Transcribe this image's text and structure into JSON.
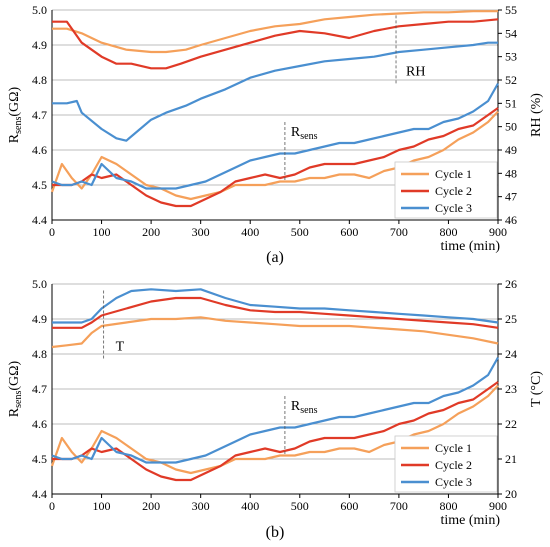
{
  "chart_data": [
    {
      "type": "line",
      "panel_label": "(a)",
      "xlabel": "time (min)",
      "ylabel_main": "R",
      "ylabel_sub": "sens",
      "ylabel_unit": "(GΩ)",
      "y2label": "RH (%)",
      "xlim": [
        0,
        900
      ],
      "ylim": [
        4.4,
        5.0
      ],
      "y2lim": [
        46,
        55
      ],
      "xticks": [
        "0",
        "100",
        "200",
        "300",
        "400",
        "500",
        "600",
        "700",
        "800",
        "900"
      ],
      "yticks": [
        "4.4",
        "4.5",
        "4.6",
        "4.7",
        "4.8",
        "4.9",
        "5.0"
      ],
      "y2ticks": [
        "46",
        "47",
        "48",
        "49",
        "50",
        "51",
        "52",
        "53",
        "54",
        "55"
      ],
      "grid": true,
      "legend": {
        "placement": "bottom-right",
        "entries": [
          "Cycle 1",
          "Cycle 2",
          "Cycle 3"
        ]
      },
      "annotations": [
        {
          "text": "RH",
          "x": 670,
          "y_rh": 52.2
        },
        {
          "text_main": "R",
          "text_sub": "sens",
          "x": 470,
          "y": 4.6
        }
      ],
      "colors": {
        "Cycle 1": "#f5a05a",
        "Cycle 2": "#e03a27",
        "Cycle 3": "#4a8fd0"
      },
      "series_rh": [
        {
          "name": "Cycle 1",
          "axis": "right",
          "x": [
            0,
            30,
            60,
            100,
            150,
            200,
            230,
            270,
            300,
            350,
            400,
            450,
            500,
            550,
            600,
            650,
            700,
            750,
            800,
            850,
            900
          ],
          "y": [
            54.2,
            54.2,
            54.0,
            53.6,
            53.3,
            53.2,
            53.2,
            53.3,
            53.5,
            53.8,
            54.1,
            54.3,
            54.4,
            54.6,
            54.7,
            54.8,
            54.85,
            54.9,
            54.9,
            54.95,
            54.95
          ]
        },
        {
          "name": "Cycle 2",
          "axis": "right",
          "x": [
            0,
            30,
            60,
            100,
            130,
            160,
            200,
            230,
            260,
            300,
            350,
            400,
            450,
            500,
            550,
            600,
            650,
            700,
            750,
            800,
            850,
            900
          ],
          "y": [
            54.5,
            54.5,
            53.6,
            53.0,
            52.7,
            52.7,
            52.5,
            52.5,
            52.7,
            53.0,
            53.3,
            53.6,
            53.9,
            54.1,
            54.0,
            53.8,
            54.1,
            54.3,
            54.4,
            54.5,
            54.5,
            54.6
          ]
        },
        {
          "name": "Cycle 3",
          "axis": "right",
          "x": [
            0,
            30,
            50,
            60,
            100,
            130,
            150,
            200,
            230,
            270,
            300,
            350,
            400,
            450,
            500,
            550,
            600,
            650,
            700,
            750,
            800,
            850,
            880,
            900
          ],
          "y": [
            51.0,
            51.0,
            51.1,
            50.6,
            49.9,
            49.5,
            49.4,
            50.3,
            50.6,
            50.9,
            51.2,
            51.6,
            52.1,
            52.4,
            52.6,
            52.8,
            52.9,
            53.0,
            53.2,
            53.3,
            53.4,
            53.5,
            53.6,
            53.6
          ]
        }
      ],
      "series_r": [
        {
          "name": "Cycle 1",
          "axis": "left",
          "x": [
            0,
            20,
            40,
            60,
            80,
            100,
            130,
            160,
            190,
            220,
            250,
            280,
            310,
            340,
            370,
            400,
            430,
            460,
            490,
            520,
            550,
            580,
            610,
            640,
            670,
            700,
            730,
            760,
            790,
            820,
            850,
            880,
            900
          ],
          "y": [
            4.48,
            4.56,
            4.52,
            4.49,
            4.53,
            4.58,
            4.56,
            4.53,
            4.5,
            4.49,
            4.47,
            4.46,
            4.47,
            4.48,
            4.5,
            4.5,
            4.5,
            4.51,
            4.51,
            4.52,
            4.52,
            4.53,
            4.53,
            4.52,
            4.54,
            4.55,
            4.57,
            4.58,
            4.6,
            4.63,
            4.65,
            4.68,
            4.71
          ]
        },
        {
          "name": "Cycle 2",
          "axis": "left",
          "x": [
            0,
            20,
            40,
            60,
            80,
            100,
            130,
            160,
            190,
            220,
            250,
            280,
            310,
            340,
            370,
            400,
            430,
            460,
            490,
            520,
            550,
            580,
            610,
            640,
            670,
            700,
            730,
            760,
            790,
            820,
            850,
            880,
            900
          ],
          "y": [
            4.5,
            4.5,
            4.5,
            4.51,
            4.53,
            4.52,
            4.53,
            4.5,
            4.47,
            4.45,
            4.44,
            4.44,
            4.46,
            4.48,
            4.51,
            4.52,
            4.53,
            4.52,
            4.53,
            4.55,
            4.56,
            4.56,
            4.56,
            4.57,
            4.58,
            4.6,
            4.61,
            4.63,
            4.64,
            4.66,
            4.67,
            4.7,
            4.72
          ]
        },
        {
          "name": "Cycle 3",
          "axis": "left",
          "x": [
            0,
            20,
            40,
            60,
            80,
            100,
            130,
            160,
            190,
            220,
            250,
            280,
            310,
            340,
            370,
            400,
            430,
            460,
            490,
            520,
            550,
            580,
            610,
            640,
            670,
            700,
            730,
            760,
            790,
            820,
            850,
            880,
            900
          ],
          "y": [
            4.51,
            4.5,
            4.5,
            4.51,
            4.5,
            4.56,
            4.52,
            4.51,
            4.49,
            4.49,
            4.49,
            4.5,
            4.51,
            4.53,
            4.55,
            4.57,
            4.58,
            4.59,
            4.59,
            4.6,
            4.61,
            4.62,
            4.62,
            4.63,
            4.64,
            4.65,
            4.66,
            4.66,
            4.68,
            4.69,
            4.71,
            4.74,
            4.79
          ]
        }
      ]
    },
    {
      "type": "line",
      "panel_label": "(b)",
      "xlabel": "time (min)",
      "ylabel_main": "R",
      "ylabel_sub": "sens",
      "ylabel_unit": "(GΩ)",
      "y2label": "T (°C)",
      "xlim": [
        0,
        900
      ],
      "ylim": [
        4.4,
        5.0
      ],
      "y2lim": [
        20,
        26
      ],
      "xticks": [
        "0",
        "100",
        "200",
        "300",
        "400",
        "500",
        "600",
        "700",
        "800",
        "900"
      ],
      "yticks": [
        "4.4",
        "4.5",
        "4.6",
        "4.7",
        "4.8",
        "4.9",
        "5.0"
      ],
      "y2ticks": [
        "20",
        "21",
        "22",
        "23",
        "24",
        "25",
        "26"
      ],
      "grid": true,
      "legend": {
        "placement": "bottom-right",
        "entries": [
          "Cycle 1",
          "Cycle 2",
          "Cycle 3"
        ]
      },
      "annotations": [
        {
          "text": "T",
          "x": 80,
          "y_t": 24.1
        },
        {
          "text_main": "R",
          "text_sub": "sens",
          "x": 470,
          "y": 4.6
        }
      ],
      "colors": {
        "Cycle 1": "#f5a05a",
        "Cycle 2": "#e03a27",
        "Cycle 3": "#4a8fd0"
      },
      "series_t": [
        {
          "name": "Cycle 1",
          "axis": "right",
          "x": [
            0,
            30,
            60,
            80,
            100,
            150,
            200,
            250,
            300,
            350,
            400,
            450,
            500,
            550,
            600,
            650,
            700,
            750,
            800,
            850,
            900
          ],
          "y": [
            24.2,
            24.25,
            24.3,
            24.6,
            24.8,
            24.9,
            25.0,
            25.0,
            25.05,
            24.95,
            24.9,
            24.85,
            24.8,
            24.8,
            24.8,
            24.75,
            24.7,
            24.65,
            24.55,
            24.45,
            24.3
          ]
        },
        {
          "name": "Cycle 2",
          "axis": "right",
          "x": [
            0,
            30,
            60,
            80,
            100,
            150,
            200,
            250,
            300,
            350,
            400,
            450,
            500,
            550,
            600,
            650,
            700,
            750,
            800,
            850,
            900
          ],
          "y": [
            24.75,
            24.75,
            24.75,
            24.9,
            25.1,
            25.3,
            25.5,
            25.6,
            25.6,
            25.4,
            25.25,
            25.2,
            25.2,
            25.15,
            25.1,
            25.05,
            25.0,
            24.95,
            24.9,
            24.85,
            24.75
          ]
        },
        {
          "name": "Cycle 3",
          "axis": "right",
          "x": [
            0,
            30,
            60,
            80,
            100,
            130,
            160,
            200,
            250,
            300,
            350,
            400,
            450,
            500,
            550,
            600,
            650,
            700,
            750,
            800,
            850,
            900
          ],
          "y": [
            24.9,
            24.9,
            24.9,
            25.0,
            25.3,
            25.6,
            25.8,
            25.85,
            25.8,
            25.85,
            25.6,
            25.4,
            25.35,
            25.3,
            25.3,
            25.25,
            25.2,
            25.15,
            25.1,
            25.05,
            25.0,
            24.9
          ]
        }
      ],
      "series_r": [
        {
          "name": "Cycle 1",
          "axis": "left",
          "x": [
            0,
            20,
            40,
            60,
            80,
            100,
            130,
            160,
            190,
            220,
            250,
            280,
            310,
            340,
            370,
            400,
            430,
            460,
            490,
            520,
            550,
            580,
            610,
            640,
            670,
            700,
            730,
            760,
            790,
            820,
            850,
            880,
            900
          ],
          "y": [
            4.48,
            4.56,
            4.52,
            4.49,
            4.53,
            4.58,
            4.56,
            4.53,
            4.5,
            4.49,
            4.47,
            4.46,
            4.47,
            4.48,
            4.5,
            4.5,
            4.5,
            4.51,
            4.51,
            4.52,
            4.52,
            4.53,
            4.53,
            4.52,
            4.54,
            4.55,
            4.57,
            4.58,
            4.6,
            4.63,
            4.65,
            4.68,
            4.71
          ]
        },
        {
          "name": "Cycle 2",
          "axis": "left",
          "x": [
            0,
            20,
            40,
            60,
            80,
            100,
            130,
            160,
            190,
            220,
            250,
            280,
            310,
            340,
            370,
            400,
            430,
            460,
            490,
            520,
            550,
            580,
            610,
            640,
            670,
            700,
            730,
            760,
            790,
            820,
            850,
            880,
            900
          ],
          "y": [
            4.5,
            4.5,
            4.5,
            4.51,
            4.53,
            4.52,
            4.53,
            4.5,
            4.47,
            4.45,
            4.44,
            4.44,
            4.46,
            4.48,
            4.51,
            4.52,
            4.53,
            4.52,
            4.53,
            4.55,
            4.56,
            4.56,
            4.56,
            4.57,
            4.58,
            4.6,
            4.61,
            4.63,
            4.64,
            4.66,
            4.67,
            4.7,
            4.72
          ]
        },
        {
          "name": "Cycle 3",
          "axis": "left",
          "x": [
            0,
            20,
            40,
            60,
            80,
            100,
            130,
            160,
            190,
            220,
            250,
            280,
            310,
            340,
            370,
            400,
            430,
            460,
            490,
            520,
            550,
            580,
            610,
            640,
            670,
            700,
            730,
            760,
            790,
            820,
            850,
            880,
            900
          ],
          "y": [
            4.51,
            4.5,
            4.5,
            4.51,
            4.5,
            4.56,
            4.52,
            4.51,
            4.49,
            4.49,
            4.49,
            4.5,
            4.51,
            4.53,
            4.55,
            4.57,
            4.58,
            4.59,
            4.59,
            4.6,
            4.61,
            4.62,
            4.62,
            4.63,
            4.64,
            4.65,
            4.66,
            4.66,
            4.68,
            4.69,
            4.71,
            4.74,
            4.79
          ]
        }
      ]
    }
  ]
}
